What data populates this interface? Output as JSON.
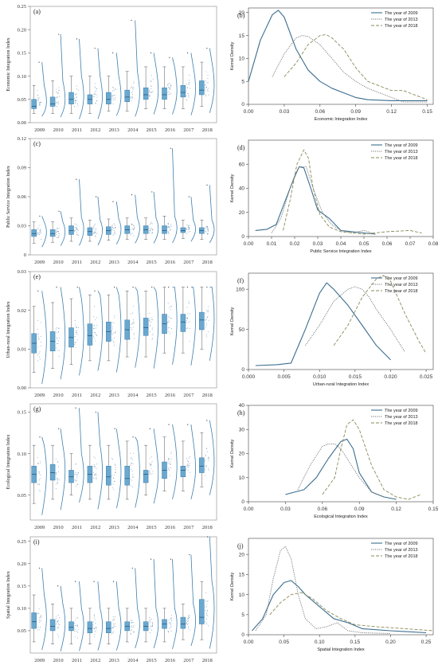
{
  "colors": {
    "line2009": "#3b6e8f",
    "line2013": "#777777",
    "line2018": "#8a8a5a",
    "box": "#6aa8cf",
    "boxEdge": "#3b7fae",
    "violin": "#3d7fb0",
    "point": "#6a8fb0"
  },
  "years": [
    "2009",
    "2010",
    "2011",
    "2012",
    "2013",
    "2014",
    "2015",
    "2016",
    "2017",
    "2018"
  ],
  "legend_items": [
    "The year of 2009",
    "The year of 2013",
    "The year of 2018"
  ],
  "chart_data": [
    {
      "panel": "(a)",
      "type": "box",
      "ylabel": "Economic Integration Index",
      "ylim": [
        0,
        0.25
      ],
      "yticks": [
        "0.00",
        "0.05",
        "0.10",
        "0.15",
        "0.20",
        "0.25"
      ],
      "categories": [
        "2009",
        "2010",
        "2011",
        "2012",
        "2013",
        "2014",
        "2015",
        "2016",
        "2017",
        "2018"
      ],
      "boxes": [
        [
          0.02,
          0.03,
          0.035,
          0.05,
          0.08
        ],
        [
          0.02,
          0.035,
          0.04,
          0.055,
          0.09
        ],
        [
          0.02,
          0.04,
          0.05,
          0.065,
          0.1
        ],
        [
          0.02,
          0.04,
          0.05,
          0.06,
          0.1
        ],
        [
          0.025,
          0.04,
          0.05,
          0.065,
          0.1
        ],
        [
          0.025,
          0.045,
          0.055,
          0.07,
          0.11
        ],
        [
          0.03,
          0.05,
          0.06,
          0.075,
          0.12
        ],
        [
          0.03,
          0.05,
          0.06,
          0.075,
          0.12
        ],
        [
          0.03,
          0.055,
          0.065,
          0.08,
          0.12
        ],
        [
          0.035,
          0.06,
          0.07,
          0.09,
          0.13
        ]
      ],
      "outliers": [
        0.13,
        0.19,
        0.18,
        0.16,
        0.15,
        0.22,
        0.15,
        0.14,
        0.15,
        0.16
      ]
    },
    {
      "panel": "(b)",
      "type": "line",
      "xlabel": "Economic Integration Index",
      "ylabel": "Kernel Density",
      "xlim": [
        0,
        0.155
      ],
      "ylim": [
        0,
        21
      ],
      "xticks": [
        "0.00",
        "0.03",
        "0.06",
        "0.09",
        "0.12",
        "0.15"
      ],
      "yticks": [
        "0",
        "5",
        "10",
        "15",
        "20"
      ],
      "series": [
        {
          "name": "The year of 2009",
          "x": [
            0.0,
            0.01,
            0.02,
            0.025,
            0.03,
            0.04,
            0.05,
            0.06,
            0.07,
            0.08,
            0.09,
            0.1,
            0.12,
            0.15
          ],
          "y": [
            5,
            14,
            19.5,
            20.5,
            19,
            12,
            7.5,
            5,
            3.5,
            2.5,
            1.5,
            1,
            0.8,
            0.8
          ]
        },
        {
          "name": "The year of 2013",
          "x": [
            0.02,
            0.03,
            0.04,
            0.045,
            0.05,
            0.06,
            0.07,
            0.08,
            0.09,
            0.1,
            0.12,
            0.13,
            0.15
          ],
          "y": [
            6,
            11,
            14.5,
            15,
            14.8,
            13,
            10,
            7,
            5,
            3.5,
            1.5,
            0.5,
            0.5
          ]
        },
        {
          "name": "The year of 2018",
          "x": [
            0.03,
            0.04,
            0.05,
            0.06,
            0.065,
            0.07,
            0.08,
            0.09,
            0.1,
            0.12,
            0.13,
            0.15
          ],
          "y": [
            6,
            9,
            13,
            15,
            15.2,
            14.5,
            12,
            8,
            5,
            3,
            3,
            1
          ]
        }
      ]
    },
    {
      "panel": "(c)",
      "type": "box",
      "ylabel": "Public Service Integration Index",
      "ylim": [
        0,
        0.12
      ],
      "yticks": [
        "0",
        "0.03",
        "0.06",
        "0.09",
        "0.12"
      ],
      "categories": [
        "2009",
        "2010",
        "2011",
        "2012",
        "2013",
        "2014",
        "2015",
        "2016",
        "2017",
        "2018"
      ],
      "boxes": [
        [
          0.012,
          0.019,
          0.022,
          0.026,
          0.034
        ],
        [
          0.013,
          0.019,
          0.022,
          0.026,
          0.034
        ],
        [
          0.014,
          0.021,
          0.025,
          0.03,
          0.038
        ],
        [
          0.014,
          0.02,
          0.024,
          0.028,
          0.036
        ],
        [
          0.015,
          0.021,
          0.025,
          0.029,
          0.037
        ],
        [
          0.016,
          0.022,
          0.026,
          0.03,
          0.038
        ],
        [
          0.016,
          0.022,
          0.026,
          0.03,
          0.038
        ],
        [
          0.016,
          0.022,
          0.025,
          0.03,
          0.04
        ],
        [
          0.017,
          0.023,
          0.025,
          0.028,
          0.036
        ],
        [
          0.016,
          0.022,
          0.025,
          0.028,
          0.036
        ]
      ],
      "outliers": [
        0.04,
        0.045,
        0.078,
        0.06,
        0.055,
        0.062,
        0.065,
        0.11,
        0.06,
        0.072
      ]
    },
    {
      "panel": "(d)",
      "type": "line",
      "xlabel": "Public Service Integration Index",
      "ylabel": "Kernel Density",
      "xlim": [
        0,
        0.08
      ],
      "ylim": [
        0,
        80
      ],
      "xticks": [
        "0.00",
        "0.01",
        "0.02",
        "0.03",
        "0.04",
        "0.05",
        "0.06",
        "0.07",
        "0.08"
      ],
      "yticks": [
        "0",
        "20",
        "40",
        "60"
      ],
      "series": [
        {
          "name": "The year of 2009",
          "x": [
            0.003,
            0.008,
            0.012,
            0.016,
            0.02,
            0.022,
            0.024,
            0.027,
            0.03,
            0.035,
            0.04,
            0.05,
            0.055
          ],
          "y": [
            5,
            6,
            10,
            30,
            50,
            58,
            57,
            40,
            22,
            15,
            5,
            3,
            2
          ]
        },
        {
          "name": "The year of 2013",
          "x": [
            0.01,
            0.014,
            0.018,
            0.022,
            0.025,
            0.028,
            0.032,
            0.036,
            0.04,
            0.045,
            0.05,
            0.055
          ],
          "y": [
            3,
            15,
            40,
            58,
            58,
            40,
            20,
            10,
            5,
            3,
            5,
            2
          ]
        },
        {
          "name": "The year of 2018",
          "x": [
            0.015,
            0.018,
            0.021,
            0.024,
            0.026,
            0.028,
            0.031,
            0.035,
            0.04,
            0.05,
            0.06,
            0.07,
            0.075
          ],
          "y": [
            5,
            30,
            60,
            72,
            65,
            40,
            18,
            8,
            4,
            2,
            4,
            5,
            3
          ]
        }
      ]
    },
    {
      "panel": "(e)",
      "type": "box",
      "ylabel": "Urban-rural Integration Index",
      "ylim": [
        0,
        0.03
      ],
      "yticks": [
        "0.00",
        "0.01",
        "0.02",
        "0.03"
      ],
      "categories": [
        "2009",
        "2010",
        "2011",
        "2012",
        "2013",
        "2014",
        "2015",
        "2016",
        "2017",
        "2018"
      ],
      "boxes": [
        [
          0.004,
          0.009,
          0.0115,
          0.014,
          0.021
        ],
        [
          0.005,
          0.0095,
          0.012,
          0.0145,
          0.022
        ],
        [
          0.006,
          0.0105,
          0.013,
          0.0155,
          0.023
        ],
        [
          0.007,
          0.011,
          0.0135,
          0.0165,
          0.024
        ],
        [
          0.007,
          0.012,
          0.0145,
          0.017,
          0.024
        ],
        [
          0.008,
          0.0125,
          0.015,
          0.0175,
          0.025
        ],
        [
          0.008,
          0.0135,
          0.0155,
          0.018,
          0.025
        ],
        [
          0.009,
          0.014,
          0.0165,
          0.019,
          0.026
        ],
        [
          0.009,
          0.0145,
          0.017,
          0.019,
          0.026
        ],
        [
          0.01,
          0.015,
          0.0175,
          0.0195,
          0.026
        ]
      ],
      "outliers": [
        0.025,
        0.026,
        0.026,
        0.025,
        0.026,
        0.026,
        0.026,
        0.026,
        0.026,
        0.026
      ]
    },
    {
      "panel": "(f)",
      "type": "line",
      "xlabel": "Urban-rural Integration Index",
      "ylabel": "Kernel Density",
      "xlim": [
        0,
        0.026
      ],
      "ylim": [
        0,
        120
      ],
      "xticks": [
        "0.000",
        "0.005",
        "0.010",
        "0.015",
        "0.020",
        "0.025"
      ],
      "yticks": [
        "0",
        "50",
        "100"
      ],
      "series": [
        {
          "name": "The year of 2009",
          "x": [
            0.001,
            0.004,
            0.006,
            0.008,
            0.01,
            0.011,
            0.012,
            0.014,
            0.016,
            0.018,
            0.02
          ],
          "y": [
            5,
            6,
            8,
            50,
            95,
            108,
            100,
            80,
            55,
            30,
            12
          ]
        },
        {
          "name": "The year of 2013",
          "x": [
            0.008,
            0.01,
            0.012,
            0.014,
            0.015,
            0.016,
            0.017,
            0.018,
            0.02,
            0.022
          ],
          "y": [
            30,
            55,
            85,
            100,
            103,
            100,
            90,
            75,
            50,
            22
          ]
        },
        {
          "name": "The year of 2018",
          "x": [
            0.012,
            0.014,
            0.016,
            0.018,
            0.019,
            0.02,
            0.022,
            0.024,
            0.025
          ],
          "y": [
            30,
            55,
            90,
            113,
            117,
            110,
            70,
            35,
            20
          ]
        }
      ]
    },
    {
      "panel": "(g)",
      "type": "box",
      "ylabel": "Ecological Integration Index",
      "ylim": [
        0.02,
        0.16
      ],
      "yticks": [
        "0.05",
        "0.10",
        "0.15"
      ],
      "categories": [
        "2009",
        "2010",
        "2011",
        "2012",
        "2013",
        "2014",
        "2015",
        "2016",
        "2017",
        "2018"
      ],
      "boxes": [
        [
          0.04,
          0.065,
          0.075,
          0.085,
          0.11
        ],
        [
          0.045,
          0.068,
          0.077,
          0.087,
          0.11
        ],
        [
          0.05,
          0.065,
          0.072,
          0.08,
          0.1
        ],
        [
          0.045,
          0.065,
          0.075,
          0.085,
          0.11
        ],
        [
          0.045,
          0.062,
          0.072,
          0.085,
          0.11
        ],
        [
          0.045,
          0.062,
          0.07,
          0.085,
          0.115
        ],
        [
          0.05,
          0.065,
          0.075,
          0.08,
          0.11
        ],
        [
          0.055,
          0.07,
          0.08,
          0.09,
          0.12
        ],
        [
          0.055,
          0.072,
          0.08,
          0.085,
          0.115
        ],
        [
          0.06,
          0.077,
          0.085,
          0.095,
          0.125
        ]
      ],
      "outliers": [
        0.12,
        0.13,
        0.155,
        0.15,
        0.13,
        0.12,
        0.13,
        0.135,
        0.135,
        0.14
      ]
    },
    {
      "panel": "(h)",
      "type": "line",
      "xlabel": "Ecological Integration Index",
      "ylabel": "Kernel Density",
      "xlim": [
        0,
        0.15
      ],
      "ylim": [
        0,
        40
      ],
      "xticks": [
        "0.00",
        "0.03",
        "0.06",
        "0.09",
        "0.12",
        "0.15"
      ],
      "yticks": [
        "0",
        "10",
        "20",
        "30",
        "40"
      ],
      "series": [
        {
          "name": "The year of 2009",
          "x": [
            0.03,
            0.045,
            0.055,
            0.065,
            0.075,
            0.08,
            0.085,
            0.09,
            0.1,
            0.11,
            0.12
          ],
          "y": [
            3,
            5,
            10,
            18,
            25,
            26,
            22,
            12,
            4,
            2,
            1
          ]
        },
        {
          "name": "The year of 2013",
          "x": [
            0.04,
            0.05,
            0.06,
            0.065,
            0.07,
            0.075,
            0.08,
            0.09,
            0.1,
            0.11
          ],
          "y": [
            5,
            15,
            23,
            24,
            24,
            22,
            18,
            10,
            4,
            2
          ]
        },
        {
          "name": "The year of 2018",
          "x": [
            0.06,
            0.07,
            0.075,
            0.08,
            0.085,
            0.09,
            0.1,
            0.11,
            0.12,
            0.13,
            0.14
          ],
          "y": [
            3,
            10,
            22,
            32,
            34,
            30,
            15,
            5,
            2,
            1,
            3
          ]
        }
      ]
    },
    {
      "panel": "(i)",
      "type": "box",
      "ylabel": "Spatial Integration Index",
      "ylim": [
        0,
        0.26
      ],
      "yticks": [
        "0.05",
        "0.10",
        "0.15",
        "0.20",
        "0.25"
      ],
      "categories": [
        "2009",
        "2010",
        "2011",
        "2012",
        "2013",
        "2014",
        "2015",
        "2016",
        "2017",
        "2018"
      ],
      "boxes": [
        [
          0.025,
          0.055,
          0.07,
          0.09,
          0.13
        ],
        [
          0.02,
          0.05,
          0.06,
          0.075,
          0.11
        ],
        [
          0.02,
          0.05,
          0.058,
          0.07,
          0.1
        ],
        [
          0.02,
          0.045,
          0.055,
          0.07,
          0.1
        ],
        [
          0.02,
          0.045,
          0.055,
          0.07,
          0.1
        ],
        [
          0.025,
          0.05,
          0.06,
          0.07,
          0.1
        ],
        [
          0.025,
          0.05,
          0.06,
          0.07,
          0.1
        ],
        [
          0.025,
          0.055,
          0.065,
          0.075,
          0.1
        ],
        [
          0.03,
          0.055,
          0.065,
          0.08,
          0.11
        ],
        [
          0.03,
          0.065,
          0.08,
          0.12,
          0.16
        ]
      ],
      "outliers": [
        0.19,
        0.15,
        0.16,
        0.16,
        0.16,
        0.19,
        0.21,
        0.21,
        0.22,
        0.26
      ]
    },
    {
      "panel": "(j)",
      "type": "line",
      "xlabel": "Spatial Integration Index",
      "ylabel": "Kernel Density",
      "xlim": [
        0,
        0.26
      ],
      "ylim": [
        0,
        24
      ],
      "xticks": [
        "0.00",
        "0.05",
        "0.10",
        "0.15",
        "0.20",
        "0.25"
      ],
      "yticks": [
        "0",
        "5",
        "10",
        "15",
        "20"
      ],
      "series": [
        {
          "name": "The year of 2009",
          "x": [
            0.005,
            0.02,
            0.035,
            0.05,
            0.06,
            0.07,
            0.08,
            0.1,
            0.12,
            0.14,
            0.16,
            0.2,
            0.25
          ],
          "y": [
            1,
            4,
            10,
            13,
            13.5,
            12,
            10,
            7,
            4,
            3,
            1.5,
            1,
            0.5
          ]
        },
        {
          "name": "The year of 2013",
          "x": [
            0.01,
            0.025,
            0.035,
            0.045,
            0.052,
            0.06,
            0.07,
            0.08,
            0.095,
            0.11,
            0.125,
            0.14,
            0.16,
            0.2
          ],
          "y": [
            1,
            5,
            14,
            21,
            22,
            19,
            10,
            4,
            1.5,
            2,
            3,
            1,
            0.5,
            0.3
          ]
        },
        {
          "name": "The year of 2018",
          "x": [
            0.03,
            0.045,
            0.06,
            0.075,
            0.09,
            0.11,
            0.13,
            0.15,
            0.18,
            0.22,
            0.26
          ],
          "y": [
            5,
            8,
            10,
            10.5,
            9,
            6,
            4,
            2.5,
            2,
            1.5,
            1
          ]
        }
      ]
    }
  ]
}
